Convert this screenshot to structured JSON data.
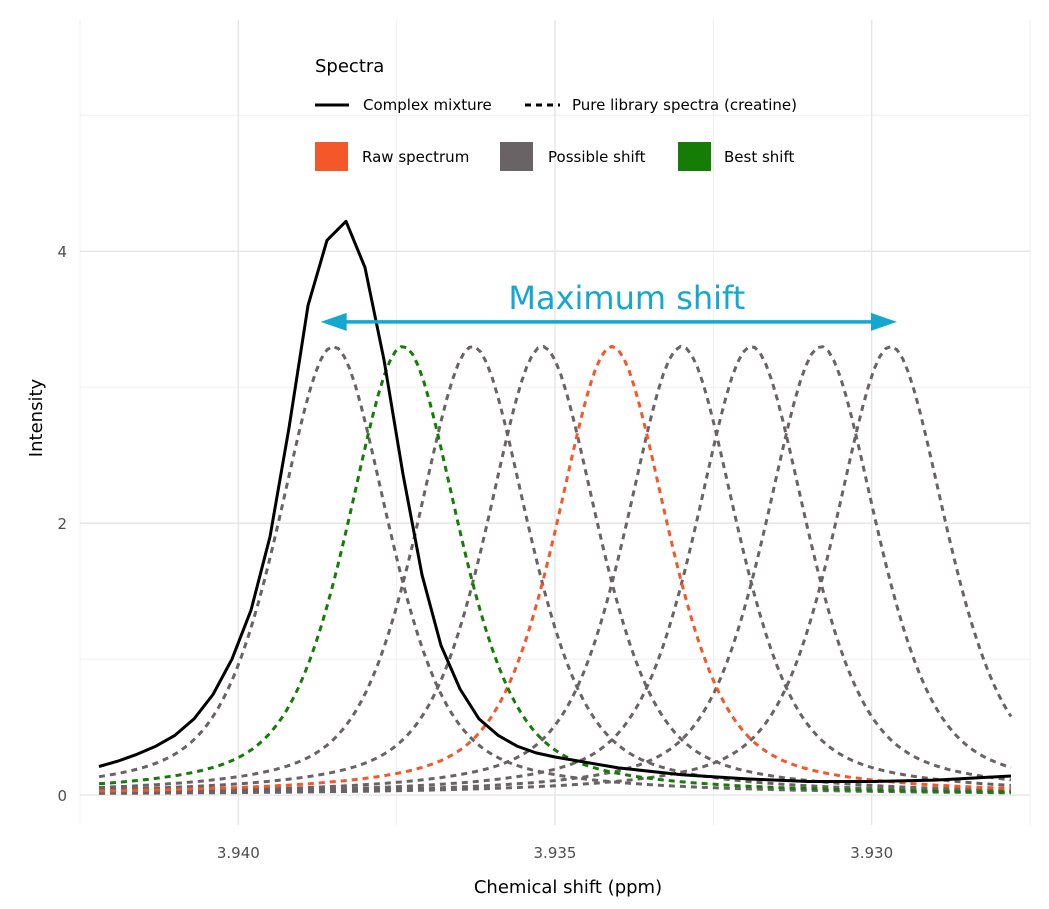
{
  "chart_data": {
    "type": "line",
    "xlabel": "Chemical shift (ppm)",
    "ylabel": "Intensity",
    "x_reversed": true,
    "xlim": [
      3.9425,
      3.9275
    ],
    "ylim": [
      -0.22,
      5.7
    ],
    "x_ticks": [
      3.94,
      3.935,
      3.93
    ],
    "x_tick_labels": [
      "3.940",
      "3.935",
      "3.930"
    ],
    "y_ticks": [
      0,
      2,
      4
    ],
    "y_tick_labels": [
      "0",
      "2",
      "4"
    ],
    "grid": true,
    "legend": {
      "title": "Spectra",
      "placement": "top",
      "linetype_entries": [
        {
          "label": "Complex mixture",
          "linetype": "solid"
        },
        {
          "label": "Pure library spectra (creatine)",
          "linetype": "dashed"
        }
      ],
      "color_entries": [
        {
          "label": "Raw spectrum",
          "color": "#f4572a"
        },
        {
          "label": "Possible shift",
          "color": "#696366"
        },
        {
          "label": "Best shift",
          "color": "#157c06"
        }
      ]
    },
    "annotation": {
      "text": "Maximum shift",
      "color": "#14a7cf",
      "y": 3.48,
      "x_from": 3.9387,
      "x_to": 3.9296,
      "double_headed_arrow": true
    },
    "series": [
      {
        "name": "Complex mixture",
        "role": "mixture",
        "color": "#000000",
        "linetype": "solid",
        "x": [
          3.9422,
          3.9419,
          3.9416,
          3.9413,
          3.941,
          3.9407,
          3.9404,
          3.9401,
          3.9398,
          3.9395,
          3.9392,
          3.9389,
          3.9386,
          3.9383,
          3.938,
          3.9377,
          3.9374,
          3.9371,
          3.9368,
          3.9365,
          3.9362,
          3.9359,
          3.9356,
          3.9353,
          3.935,
          3.934,
          3.933,
          3.932,
          3.931,
          3.93,
          3.929,
          3.9278
        ],
        "y": [
          0.21,
          0.25,
          0.3,
          0.36,
          0.44,
          0.56,
          0.74,
          1.0,
          1.36,
          1.9,
          2.7,
          3.6,
          4.08,
          4.22,
          3.88,
          3.2,
          2.36,
          1.62,
          1.1,
          0.78,
          0.56,
          0.44,
          0.36,
          0.31,
          0.28,
          0.2,
          0.15,
          0.12,
          0.1,
          0.1,
          0.11,
          0.14
        ]
      }
    ],
    "library_spectrum": {
      "shape": "pseudo-voigt",
      "height": 3.3,
      "half_width_ppm": 0.00105,
      "baseline": 0.0
    },
    "shift_centers": [
      {
        "center": 3.9385,
        "color": "#696366",
        "role": "Possible shift"
      },
      {
        "center": 3.9374,
        "color": "#157c06",
        "role": "Best shift"
      },
      {
        "center": 3.9363,
        "color": "#696366",
        "role": "Possible shift"
      },
      {
        "center": 3.9352,
        "color": "#696366",
        "role": "Possible shift"
      },
      {
        "center": 3.9341,
        "color": "#f4572a",
        "role": "Raw spectrum"
      },
      {
        "center": 3.933,
        "color": "#696366",
        "role": "Possible shift"
      },
      {
        "center": 3.9319,
        "color": "#696366",
        "role": "Possible shift"
      },
      {
        "center": 3.9308,
        "color": "#696366",
        "role": "Possible shift"
      },
      {
        "center": 3.9297,
        "color": "#696366",
        "role": "Possible shift"
      }
    ]
  }
}
